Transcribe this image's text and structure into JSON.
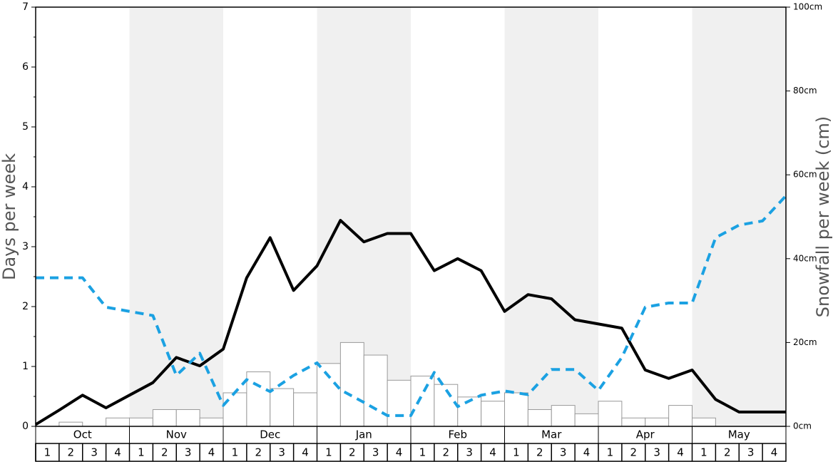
{
  "chart_data": {
    "type": "bar",
    "y_label": "Days per week",
    "y2_label": "Snowfall per week (cm)",
    "ylim": [
      0,
      7
    ],
    "yticks": [
      0,
      1,
      2,
      3,
      4,
      5,
      6,
      7
    ],
    "y2lim": [
      0,
      100
    ],
    "y2ticks": [
      {
        "value": 0,
        "label": "0cm"
      },
      {
        "value": 20,
        "label": "20cm"
      },
      {
        "value": 40,
        "label": "40cm"
      },
      {
        "value": 60,
        "label": "60cm"
      },
      {
        "value": 80,
        "label": "80cm"
      },
      {
        "value": 100,
        "label": "100cm"
      }
    ],
    "months": [
      "Oct",
      "Nov",
      "Dec",
      "Jan",
      "Feb",
      "Mar",
      "Apr",
      "May"
    ],
    "weeks": [
      1,
      2,
      3,
      4
    ],
    "series": [
      {
        "type": "bar",
        "axis": "y2",
        "color": "#ffffff",
        "values": [
          0,
          1,
          0,
          2,
          2,
          4,
          4,
          2,
          8,
          13,
          9,
          8,
          15,
          20,
          17,
          11,
          12,
          10,
          7,
          6,
          8,
          4,
          5,
          3,
          6,
          2,
          2,
          5,
          2,
          0,
          0,
          0
        ]
      },
      {
        "type": "line",
        "color": "#000000",
        "dashed": false,
        "values": [
          0.03,
          0.27,
          0.52,
          0.31,
          0.52,
          0.73,
          1.15,
          1.01,
          1.29,
          2.48,
          3.15,
          2.27,
          2.68,
          3.44,
          3.08,
          3.22,
          3.22,
          2.6,
          2.8,
          2.6,
          1.92,
          2.2,
          2.13,
          1.78,
          1.71,
          1.64,
          0.94,
          0.8,
          0.94,
          0.45,
          0.24,
          0.24,
          0.24
        ]
      },
      {
        "type": "line",
        "color": "#1ba1e2",
        "dashed": true,
        "values": [
          2.48,
          2.48,
          2.48,
          1.99,
          1.92,
          1.85,
          0.85,
          1.22,
          0.35,
          0.78,
          0.58,
          0.85,
          1.06,
          0.61,
          0.4,
          0.18,
          0.18,
          0.9,
          0.33,
          0.52,
          0.59,
          0.53,
          0.95,
          0.95,
          0.6,
          1.15,
          1.99,
          2.06,
          2.06,
          3.15,
          3.36,
          3.43,
          3.85
        ]
      }
    ]
  }
}
